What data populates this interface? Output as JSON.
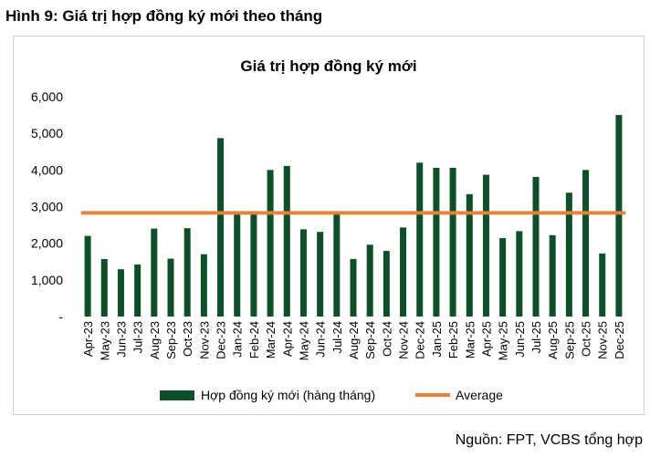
{
  "figure_title": "Hình 9: Giá trị hợp đồng ký mới theo tháng",
  "source": "Nguồn: FPT, VCBS tổng hợp",
  "colors": {
    "bar": "#0e4f2a",
    "average": "#e8823a"
  },
  "chart_data": {
    "type": "bar",
    "title": "Giá trị hợp đồng ký mới",
    "xlabel": "",
    "ylabel": "",
    "ylim": [
      0,
      6000
    ],
    "yticks": [
      0,
      1000,
      2000,
      3000,
      4000,
      5000,
      6000
    ],
    "ytick_labels": [
      "-",
      "1,000",
      "2,000",
      "3,000",
      "4,000",
      "5,000",
      "6,000"
    ],
    "grid": false,
    "legend_position": "bottom",
    "categories": [
      "Apr-23",
      "May-23",
      "Jun-23",
      "Jul-23",
      "Aug-23",
      "Sep-23",
      "Oct-23",
      "Nov-23",
      "Dec-23",
      "Jan-24",
      "Feb-24",
      "Mar-24",
      "Apr-24",
      "May-24",
      "Jun-24",
      "Jul-24",
      "Aug-24",
      "Sep-24",
      "Oct-24",
      "Nov-24",
      "Dec-24",
      "Jan-25",
      "Feb-25",
      "Mar-25",
      "Apr-25",
      "May-25",
      "Jun-25",
      "Jul-25",
      "Aug-25",
      "Sep-25",
      "Oct-25",
      "Nov-25",
      "Dec-25"
    ],
    "series": [
      {
        "name": "Hợp đồng ký mới (hàng tháng)",
        "type": "bar",
        "values": [
          2200,
          1570,
          1290,
          1420,
          2400,
          1580,
          2410,
          1700,
          4870,
          2870,
          2860,
          4000,
          4110,
          2380,
          2310,
          2800,
          1570,
          1960,
          1790,
          2430,
          4200,
          4060,
          4060,
          3340,
          3870,
          2140,
          2330,
          3810,
          2220,
          3380,
          4000,
          1720,
          5500
        ]
      },
      {
        "name": "Average",
        "type": "line",
        "values": [
          2830,
          2830,
          2830,
          2830,
          2830,
          2830,
          2830,
          2830,
          2830,
          2830,
          2830,
          2830,
          2830,
          2830,
          2830,
          2830,
          2830,
          2830,
          2830,
          2830,
          2830,
          2830,
          2830,
          2830,
          2830,
          2830,
          2830,
          2830,
          2830,
          2830,
          2830,
          2830,
          2830
        ]
      }
    ]
  }
}
